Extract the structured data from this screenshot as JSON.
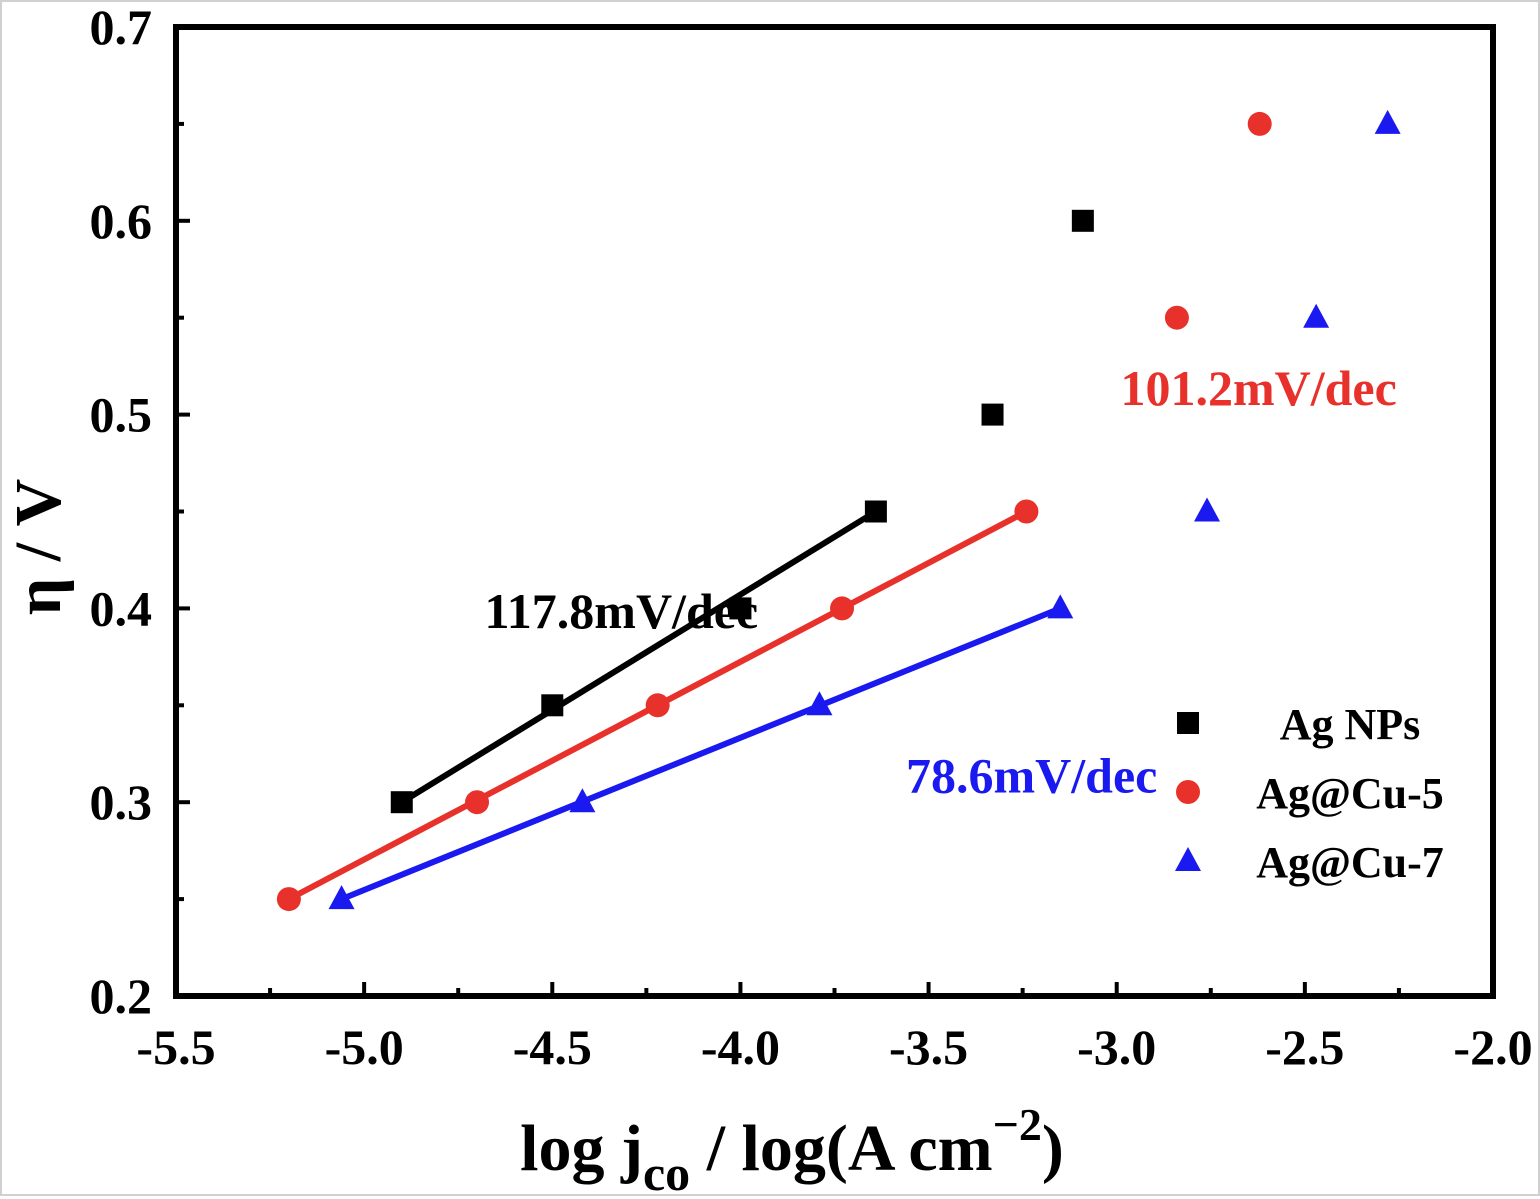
{
  "chart_data": {
    "type": "scatter",
    "xlabel_main": "log j",
    "xlabel_sub": "co",
    "xlabel_mid": " / log(A cm",
    "xlabel_sup": "−2",
    "xlabel_end": ")",
    "ylabel": "η / V",
    "xlim": [
      -5.5,
      -2.0
    ],
    "ylim": [
      0.2,
      0.7
    ],
    "x_ticks": [
      -5.5,
      -5.0,
      -4.5,
      -4.0,
      -3.5,
      -3.0,
      -2.5,
      -2.0
    ],
    "x_tick_labels": [
      "-5.5",
      "-5.0",
      "-4.5",
      "-4.0",
      "-3.5",
      "-3.0",
      "-2.5",
      "-2.0"
    ],
    "y_ticks": [
      0.2,
      0.3,
      0.4,
      0.5,
      0.6,
      0.7
    ],
    "y_tick_labels": [
      "0.2",
      "0.3",
      "0.4",
      "0.5",
      "0.6",
      "0.7"
    ],
    "legend_position": "bottom-right",
    "series": [
      {
        "name": "Ag NPs",
        "marker": "square",
        "color": "#000000",
        "points": [
          [
            -4.9,
            0.3
          ],
          [
            -4.5,
            0.35
          ],
          [
            -4.0,
            0.4
          ],
          [
            -3.64,
            0.45
          ],
          [
            -3.33,
            0.5
          ],
          [
            -3.09,
            0.6
          ]
        ],
        "fit": [
          [
            -4.9,
            0.3
          ],
          [
            -3.64,
            0.45
          ]
        ]
      },
      {
        "name": "Ag@Cu-5",
        "marker": "circle",
        "color": "#e8312a",
        "points": [
          [
            -5.2,
            0.25
          ],
          [
            -4.7,
            0.3
          ],
          [
            -4.22,
            0.35
          ],
          [
            -3.73,
            0.4
          ],
          [
            -3.24,
            0.45
          ],
          [
            -2.84,
            0.55
          ],
          [
            -2.62,
            0.65
          ]
        ],
        "fit": [
          [
            -5.2,
            0.25
          ],
          [
            -3.24,
            0.45
          ]
        ]
      },
      {
        "name": "Ag@Cu-7",
        "marker": "triangle",
        "color": "#1a1af0",
        "points": [
          [
            -5.06,
            0.25
          ],
          [
            -4.42,
            0.3
          ],
          [
            -3.79,
            0.35
          ],
          [
            -3.15,
            0.4
          ],
          [
            -2.76,
            0.45
          ],
          [
            -2.47,
            0.55
          ],
          [
            -2.28,
            0.65
          ]
        ],
        "fit": [
          [
            -5.06,
            0.25
          ],
          [
            -3.15,
            0.4
          ]
        ]
      }
    ],
    "annotations": [
      {
        "text": "117.8mV/dec",
        "color": "#000000",
        "x": -4.68,
        "y": 0.39
      },
      {
        "text": "101.2mV/dec",
        "color": "#e8312a",
        "x": -2.99,
        "y": 0.505
      },
      {
        "text": "78.6mV/dec",
        "color": "#1a1af0",
        "x": -3.56,
        "y": 0.305
      }
    ]
  }
}
